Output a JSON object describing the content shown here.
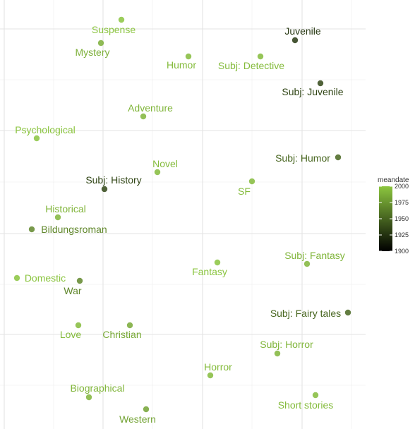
{
  "chart_data": {
    "type": "scatter",
    "title": "",
    "xlabel": "",
    "ylabel": "",
    "xlim": [
      0,
      588
    ],
    "ylim": [
      0,
      608
    ],
    "grid": true,
    "color_scale": {
      "title": "meandate",
      "min": 1900,
      "max": 2000,
      "ticks": [
        2000,
        1975,
        1950,
        1925,
        1900
      ],
      "low_color": "#000000",
      "high_color": "#8cc63f"
    },
    "points": [
      {
        "label": "Suspense",
        "x": 172,
        "y": 28,
        "meandate": 1998
      },
      {
        "label": "Mystery",
        "x": 143,
        "y": 61,
        "meandate": 1980
      },
      {
        "label": "Juvenile",
        "x": 418,
        "y": 57,
        "meandate": 1910
      },
      {
        "label": "Humor",
        "x": 267,
        "y": 80,
        "meandate": 1990
      },
      {
        "label": "Subj: Detective",
        "x": 369,
        "y": 80,
        "meandate": 1990
      },
      {
        "label": "Subj: Juvenile",
        "x": 454,
        "y": 118,
        "meandate": 1915
      },
      {
        "label": "Adventure",
        "x": 203,
        "y": 165,
        "meandate": 1985
      },
      {
        "label": "Psychological",
        "x": 52,
        "y": 196,
        "meandate": 1998
      },
      {
        "label": "Subj: Humor",
        "x": 479,
        "y": 223,
        "meandate": 1930
      },
      {
        "label": "Novel",
        "x": 223,
        "y": 244,
        "meandate": 1990
      },
      {
        "label": "Subj: History",
        "x": 148,
        "y": 268,
        "meandate": 1915
      },
      {
        "label": "SF",
        "x": 357,
        "y": 257,
        "meandate": 1990
      },
      {
        "label": "Historical",
        "x": 82,
        "y": 308,
        "meandate": 1985
      },
      {
        "label": "Bildungsroman",
        "x": 45,
        "y": 325,
        "meandate": 1950
      },
      {
        "label": "Fantasy",
        "x": 308,
        "y": 372,
        "meandate": 1998
      },
      {
        "label": "Subj: Fantasy",
        "x": 435,
        "y": 374,
        "meandate": 1985
      },
      {
        "label": "Domestic",
        "x": 24,
        "y": 394,
        "meandate": 1998
      },
      {
        "label": "War",
        "x": 113,
        "y": 398,
        "meandate": 1950
      },
      {
        "label": "Subj: Fairy tales",
        "x": 493,
        "y": 443,
        "meandate": 1930
      },
      {
        "label": "Love",
        "x": 111,
        "y": 461,
        "meandate": 1990
      },
      {
        "label": "Christian",
        "x": 184,
        "y": 461,
        "meandate": 1975
      },
      {
        "label": "Subj: Horror",
        "x": 393,
        "y": 501,
        "meandate": 1985
      },
      {
        "label": "Horror",
        "x": 298,
        "y": 532,
        "meandate": 1990
      },
      {
        "label": "Biographical",
        "x": 126,
        "y": 563,
        "meandate": 1985
      },
      {
        "label": "Short stories",
        "x": 447,
        "y": 560,
        "meandate": 1990
      },
      {
        "label": "Western",
        "x": 207,
        "y": 580,
        "meandate": 1970
      }
    ]
  }
}
